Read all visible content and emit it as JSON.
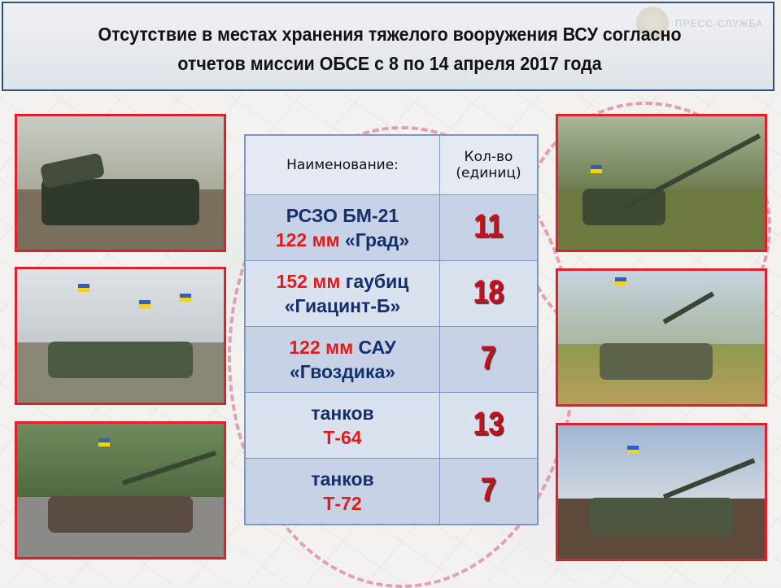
{
  "header": {
    "title_line1": "Отсутствие в местах хранения тяжелого вооружения ВСУ согласно",
    "title_line2": "отчетов миссии ОБСЕ с 8 по 14 апреля 2017 года",
    "logo_text": "ПРЕСС-СЛУЖБА"
  },
  "table": {
    "headers": {
      "name": "Наименование:",
      "count_line1": "Кол-во",
      "count_line2": "(единиц)"
    },
    "rows": [
      {
        "line1": [
          {
            "t": "РСЗО БМ-21",
            "c": "navy"
          }
        ],
        "line2": [
          {
            "t": "122 мм",
            "c": "red"
          },
          {
            "t": " «Град»",
            "c": "navy"
          }
        ],
        "count": "11"
      },
      {
        "line1": [
          {
            "t": "152 мм",
            "c": "red"
          },
          {
            "t": " гаубиц",
            "c": "navy"
          }
        ],
        "line2": [
          {
            "t": "«Гиацинт-Б»",
            "c": "navy"
          }
        ],
        "count": "18"
      },
      {
        "line1": [
          {
            "t": "122 мм",
            "c": "red"
          },
          {
            "t": " САУ",
            "c": "navy"
          }
        ],
        "line2": [
          {
            "t": "«Гвоздика»",
            "c": "navy"
          }
        ],
        "count": "7"
      },
      {
        "line1": [
          {
            "t": "танков",
            "c": "navy"
          }
        ],
        "line2": [
          {
            "t": "Т-64",
            "c": "red"
          }
        ],
        "count": "13"
      },
      {
        "line1": [
          {
            "t": "танков",
            "c": "navy"
          }
        ],
        "line2": [
          {
            "t": "Т-72",
            "c": "red"
          }
        ],
        "count": "7"
      }
    ]
  },
  "colors": {
    "border": "#e0202a",
    "navy": "#13306c",
    "red": "#e31b1b",
    "count": "#c4111d",
    "header_border": "#2d4f7a"
  }
}
